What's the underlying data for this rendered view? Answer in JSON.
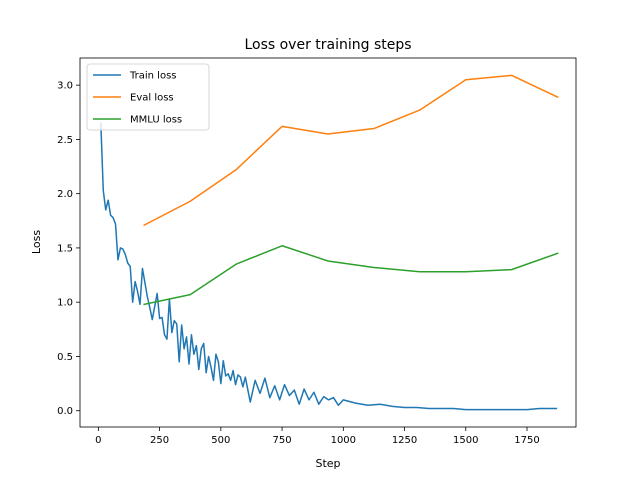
{
  "chart_data": {
    "type": "line",
    "title": "Loss over training steps",
    "xlabel": "Step",
    "ylabel": "Loss",
    "xlim": [
      -75,
      1950
    ],
    "ylim": [
      -0.15,
      3.25
    ],
    "xticks": [
      0,
      250,
      500,
      750,
      1000,
      1250,
      1500,
      1750
    ],
    "yticks": [
      0.0,
      0.5,
      1.0,
      1.5,
      2.0,
      2.5,
      3.0
    ],
    "grid": false,
    "legend": "top-left",
    "series": [
      {
        "name": "Train loss",
        "color": "#1f77b4",
        "x": [
          10,
          20,
          30,
          40,
          50,
          60,
          70,
          80,
          90,
          100,
          110,
          120,
          130,
          140,
          150,
          160,
          170,
          180,
          190,
          200,
          210,
          220,
          230,
          240,
          250,
          260,
          270,
          280,
          290,
          300,
          310,
          320,
          330,
          340,
          350,
          360,
          370,
          380,
          390,
          400,
          410,
          420,
          430,
          440,
          450,
          460,
          470,
          480,
          490,
          500,
          510,
          520,
          530,
          540,
          550,
          560,
          570,
          580,
          590,
          600,
          620,
          640,
          660,
          680,
          700,
          720,
          740,
          760,
          780,
          800,
          820,
          840,
          860,
          880,
          900,
          920,
          940,
          960,
          980,
          1000,
          1050,
          1100,
          1150,
          1200,
          1250,
          1300,
          1350,
          1400,
          1450,
          1500,
          1550,
          1600,
          1650,
          1700,
          1750,
          1800,
          1850,
          1870
        ],
        "y": [
          2.65,
          2.03,
          1.85,
          1.94,
          1.8,
          1.78,
          1.72,
          1.39,
          1.5,
          1.49,
          1.44,
          1.36,
          1.33,
          1.0,
          1.19,
          1.1,
          0.98,
          1.31,
          1.18,
          1.05,
          0.95,
          0.84,
          0.96,
          1.08,
          0.85,
          0.86,
          0.7,
          0.66,
          1.03,
          0.72,
          0.83,
          0.8,
          0.45,
          0.79,
          0.57,
          0.68,
          0.43,
          0.7,
          0.52,
          0.6,
          0.38,
          0.57,
          0.62,
          0.35,
          0.5,
          0.4,
          0.28,
          0.52,
          0.45,
          0.25,
          0.46,
          0.32,
          0.34,
          0.28,
          0.37,
          0.24,
          0.33,
          0.31,
          0.22,
          0.31,
          0.08,
          0.28,
          0.16,
          0.3,
          0.12,
          0.23,
          0.1,
          0.24,
          0.14,
          0.19,
          0.06,
          0.2,
          0.1,
          0.17,
          0.06,
          0.13,
          0.1,
          0.12,
          0.05,
          0.1,
          0.07,
          0.05,
          0.06,
          0.04,
          0.03,
          0.03,
          0.02,
          0.02,
          0.02,
          0.01,
          0.01,
          0.01,
          0.01,
          0.01,
          0.01,
          0.02,
          0.02,
          0.02
        ]
      },
      {
        "name": "Eval loss",
        "color": "#ff7f0e",
        "x": [
          187,
          375,
          562,
          750,
          937,
          1125,
          1312,
          1500,
          1687,
          1875
        ],
        "y": [
          1.71,
          1.93,
          2.22,
          2.62,
          2.55,
          2.6,
          2.77,
          3.05,
          3.09,
          2.89
        ]
      },
      {
        "name": "MMLU loss",
        "color": "#2ca02c",
        "x": [
          187,
          375,
          562,
          750,
          937,
          1125,
          1312,
          1500,
          1687,
          1875
        ],
        "y": [
          0.98,
          1.07,
          1.35,
          1.52,
          1.38,
          1.32,
          1.28,
          1.28,
          1.3,
          1.45
        ]
      }
    ]
  }
}
